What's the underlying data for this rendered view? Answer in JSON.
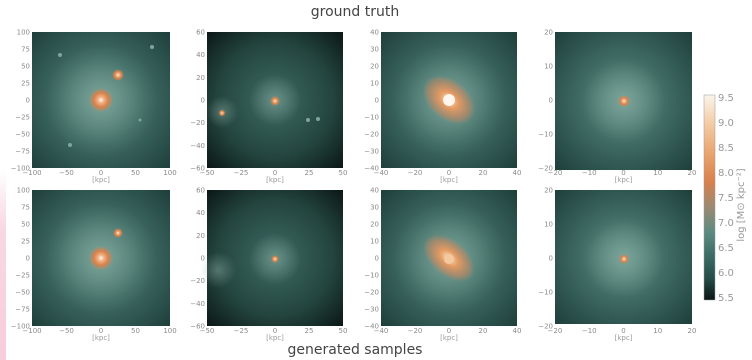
{
  "labels": {
    "top_caption": "ground truth",
    "bottom_caption": "generated samples",
    "unit": "[kpc]",
    "colorbar_label": "log [M⊙ kpc⁻²]"
  },
  "colorbar": {
    "ticks": [
      "9.5",
      "9.0",
      "8.5",
      "8.0",
      "7.5",
      "7.0",
      "6.5",
      "6.0",
      "5.5"
    ],
    "colors": [
      "#fbf4ec",
      "#f3c9a0",
      "#e8a06a",
      "#d9814b",
      "#9a8a72",
      "#5b8b80",
      "#3d6e66",
      "#244a45",
      "#0b1414"
    ]
  },
  "panels": [
    {
      "row": 0,
      "col": 0,
      "xticks": [
        "−100",
        "−50",
        "0",
        "50",
        "100"
      ],
      "yticks": [
        "100",
        "75",
        "50",
        "25",
        "0",
        "−25",
        "−50",
        "−75",
        "−100"
      ]
    },
    {
      "row": 0,
      "col": 1,
      "xticks": [
        "−50",
        "−25",
        "0",
        "25",
        "50"
      ],
      "yticks": [
        "60",
        "40",
        "20",
        "0",
        "−20",
        "−40",
        "−60"
      ]
    },
    {
      "row": 0,
      "col": 2,
      "xticks": [
        "−40",
        "−20",
        "0",
        "20",
        "40"
      ],
      "yticks": [
        "40",
        "30",
        "20",
        "10",
        "0",
        "−10",
        "−20",
        "−30",
        "−40"
      ]
    },
    {
      "row": 0,
      "col": 3,
      "xticks": [
        "−20",
        "−10",
        "0",
        "10",
        "20"
      ],
      "yticks": [
        "20",
        "10",
        "0",
        "−10",
        "−20"
      ]
    },
    {
      "row": 1,
      "col": 0,
      "xticks": [
        "−100",
        "−50",
        "0",
        "50",
        "100"
      ],
      "yticks": [
        "100",
        "75",
        "50",
        "25",
        "0",
        "−25",
        "−50",
        "−75",
        "−100"
      ]
    },
    {
      "row": 1,
      "col": 1,
      "xticks": [
        "−50",
        "−25",
        "0",
        "25",
        "50"
      ],
      "yticks": [
        "60",
        "40",
        "20",
        "0",
        "−20",
        "−40",
        "−60"
      ]
    },
    {
      "row": 1,
      "col": 2,
      "xticks": [
        "−40",
        "−20",
        "0",
        "20",
        "40"
      ],
      "yticks": [
        "40",
        "30",
        "20",
        "10",
        "0",
        "−10",
        "−20",
        "−30",
        "−40"
      ]
    },
    {
      "row": 1,
      "col": 3,
      "xticks": [
        "−20",
        "−10",
        "0",
        "10",
        "20"
      ],
      "yticks": [
        "20",
        "10",
        "0",
        "−10",
        "−20"
      ]
    }
  ]
}
